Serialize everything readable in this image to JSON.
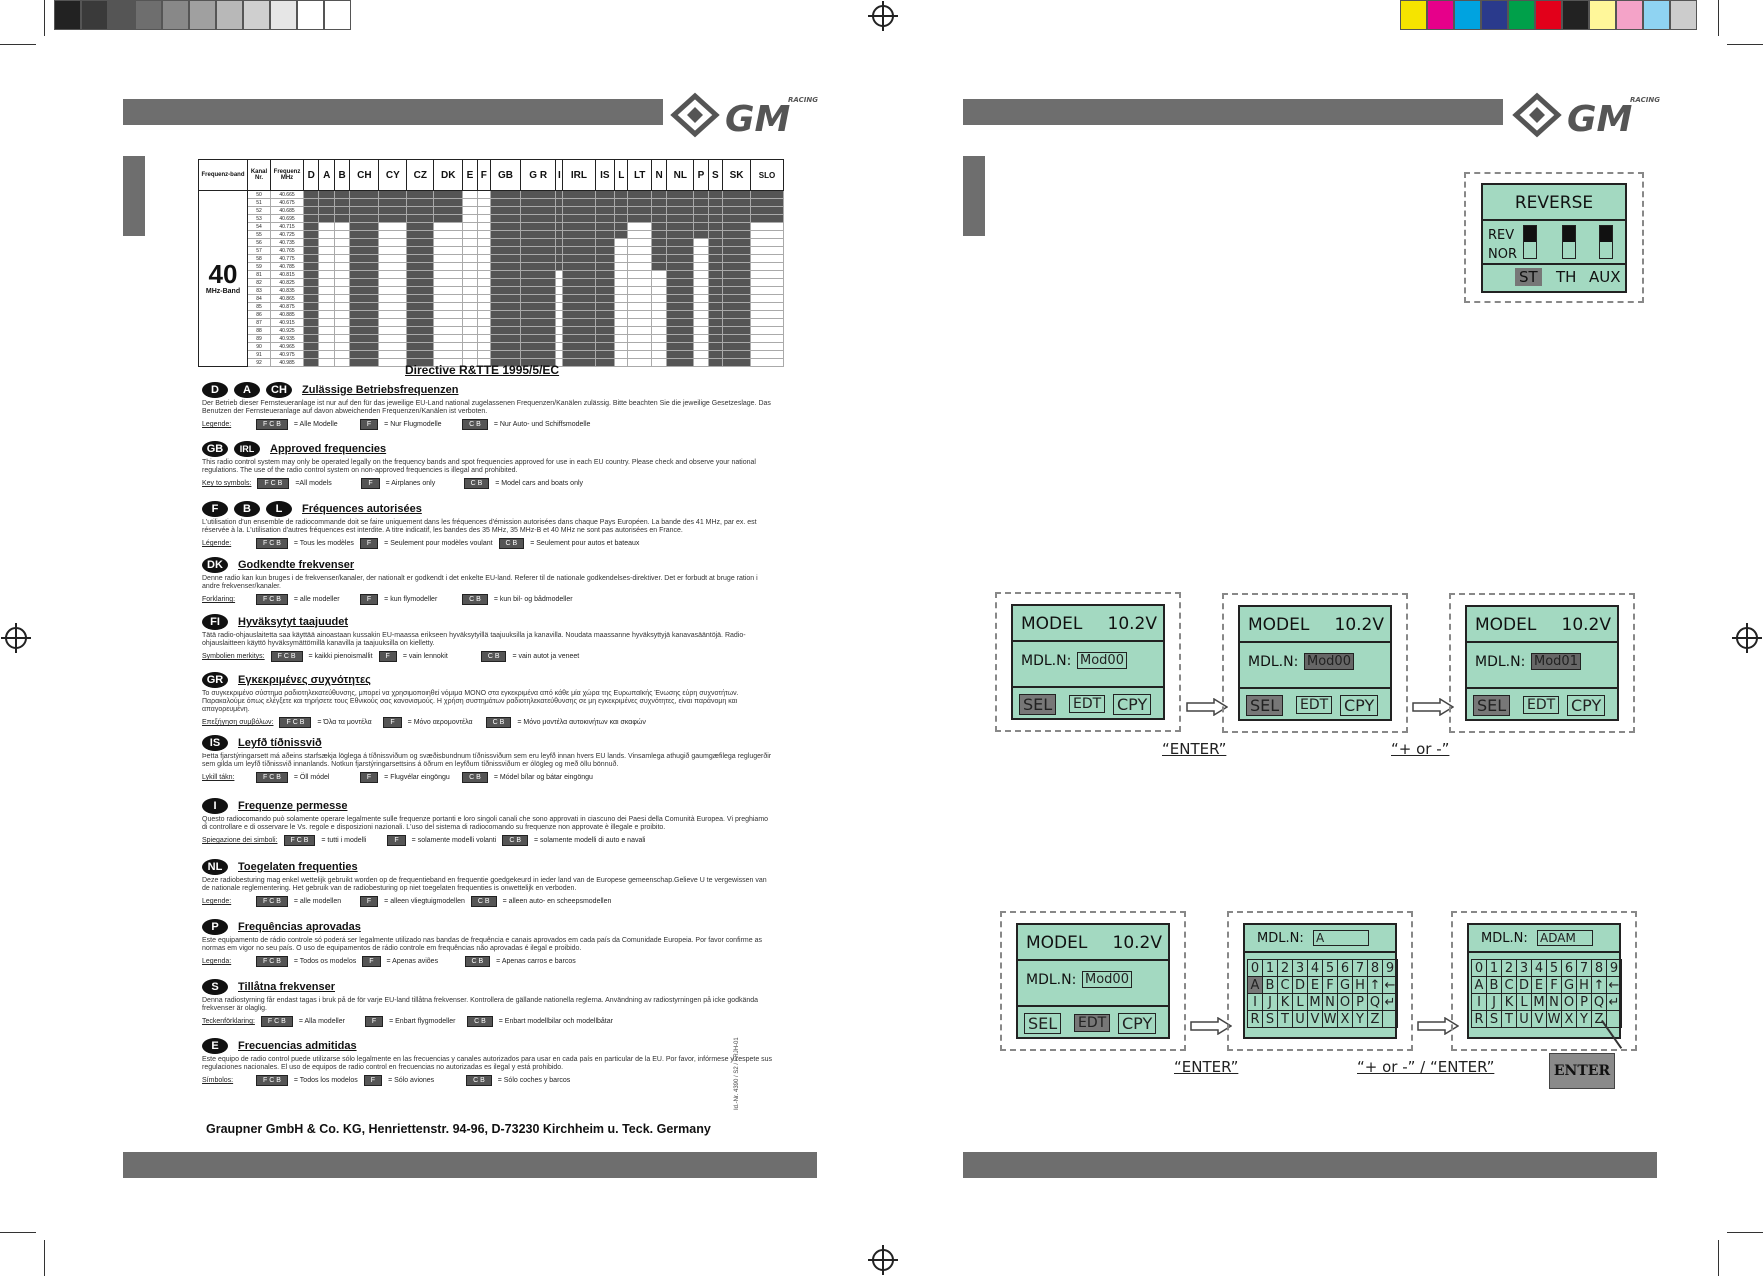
{
  "left_page": {
    "table": {
      "header_band": "Frequenz-band",
      "header_channel": "Kanal Nr.",
      "header_freq": "Frequenz MHz",
      "countries": [
        "D",
        "A",
        "B",
        "CH",
        "CY",
        "CZ",
        "DK",
        "E",
        "F",
        "GB",
        "G R",
        "I",
        "IRL",
        "IS",
        "L",
        "LT",
        "N",
        "NL",
        "P",
        "S",
        "SK",
        "SLO"
      ],
      "band_label": "40",
      "band_sub": "MHz-Band",
      "channels": [
        "50",
        "51",
        "52",
        "53",
        "54",
        "55",
        "56",
        "57",
        "58",
        "59",
        "81",
        "82",
        "83",
        "84",
        "85",
        "86",
        "87",
        "88",
        "89",
        "90",
        "91",
        "92"
      ],
      "freqs": [
        "40.665",
        "40.675",
        "40.685",
        "40.695",
        "40.715",
        "40.725",
        "40.735",
        "40.765",
        "40.775",
        "40.785",
        "40.815",
        "40.825",
        "40.835",
        "40.865",
        "40.875",
        "40.885",
        "40.915",
        "40.925",
        "40.935",
        "40.965",
        "40.975",
        "40.985"
      ]
    },
    "directive": "Directive R&TTE 1995/5/EC",
    "sections": [
      {
        "flags": [
          "D",
          "A",
          "CH"
        ],
        "title": "Zulässige Betriebsfrequenzen",
        "text": "Der Betrieb dieser Fernsteueranlage ist nur auf den für das jeweilige EU-Land national zugelassenen Frequenzen/Kanälen zulässig. Bitte beachten Sie die jeweilige Gesetzeslage. Das Benutzen der Fernsteueranlage auf davon abweichenden Frequenzen/Kanälen ist verboten.",
        "legend": "Legende:",
        "l1": "= Alle Modelle",
        "l2": "= Nur Flugmodelle",
        "l3": "= Nur Auto- und Schiffsmodelle"
      },
      {
        "flags": [
          "GB",
          "IRL"
        ],
        "title": "Approved frequencies",
        "text": "This radio control system may only be operated legally on the frequency bands and spot frequencies approved for use in each EU country. Please check and observe your national regulations. The use of the radio control system on non-approved frequencies is illegal and prohibited.",
        "legend": "Key to symbols:",
        "l1": "=All models",
        "l2": "= Airplanes only",
        "l3": "= Model cars and boats only"
      },
      {
        "flags": [
          "F",
          "B",
          "L"
        ],
        "title": "Fréquences autorisées",
        "text": "L'utilisation d'un ensemble de radiocommande doit se faire uniquement dans les fréquences d'émission autorisées dans chaque Pays Européen. La bande des 41 MHz, par ex. est réservée à la. L'utilisation d'autres fréquences est interdite. A titre indicatif, les bandes des 35 MHz, 35 MHz-B et 40 MHz ne sont pas autorisées en France.",
        "legend": "Légende:",
        "l1": "= Tous les modèles",
        "l2": "= Seulement pour modèles voulant",
        "l3": "= Seulement pour autos et bateaux"
      },
      {
        "flags": [
          "DK"
        ],
        "title": "Godkendte frekvenser",
        "text": "Denne radio kan kun bruges i de frekvenser/kanaler, der nationalt er godkendt i det enkelte EU-land. Referer til de nationale godkendelses-direktiver. Det er forbudt at bruge ration i andre frekvenser/kanaler.",
        "legend": "Forklaring:",
        "l1": "= alle modeller",
        "l2": "= kun flymodeller",
        "l3": "= kun bil- og bådmodeller"
      },
      {
        "flags": [
          "FI"
        ],
        "title": "Hyväksytyt taajuudet",
        "text": "Tätä radio-ohjauslaitetta saa käyttää ainoastaan kussakin EU-maassa erikseen hyväksytyillä taajuuksilla ja kanavilla. Noudata maassanne hyväksyttyjä kanavasääntöjä. Radio-ohjauslaitteen käyttö hyväksymättömillä kanavilla ja taajuuksilla on kielletty.",
        "legend": "Symbolien merkitys:",
        "l1": "= kaikki pienoismallit",
        "l2": "= vain lennokit",
        "l3": "= vain autot ja veneet"
      },
      {
        "flags": [
          "GR"
        ],
        "title": "Εγκεκριμένες συχνότητες",
        "text": "Το συγκεκριμένο σύστημα ραδιοτηλεκατεύθυνσης, μπορεί να χρησιμοποιηθεί νόμιμα ΜΟΝΟ στα εγκεκριμένα από κάθε μία χώρα της Ευρωπαϊκής Ένωσης εύρη συχνοτήτων. Παρακαλούμε όπως ελέγξετε και τηρήσετε τους Εθνικούς σας κανονισμούς. Η χρήση συστημάτων ραδιοτηλεκατεύθυνσης σε μη εγκεκριμένες συχνότητες, είναι παράνομη και απαγορευμένη.",
        "legend": "Επεξήγηση συμβόλων:",
        "l1": "= Όλα τα μοντέλα",
        "l2": "= Μόνο αερομοντέλα",
        "l3": "= Μόνο μοντέλα αυτοκινήτων και σκαφών"
      },
      {
        "flags": [
          "IS"
        ],
        "title": "Leyfð tíðnissvið",
        "text": "Þetta fjarstýringarsett má aðeins starfsækja löglega á tíðnissviðum og svæðisbundnum tíðnissviðum sem eru leyfð innan hvers EU lands. Vinsamlega athugið gaumgæfilega reglugerðir sem gilda um leyfð tíðnissvið innanlands. Notkun fjarstýringarsettsins á öðrum en leyfðum tíðnissviðum er ólögleg og með öllu bönnuð.",
        "legend": "Lykill tákn:",
        "l1": "= Öll módel",
        "l2": "= Flugvélar eingöngu",
        "l3": "= Módel bílar og bátar eingöngu"
      },
      {
        "flags": [
          "I"
        ],
        "title": "Frequenze permesse",
        "text": "Questo radiocomando può solamente operare legalmente sulle frequenze portanti e loro singoli canali che sono approvati in ciascuno dei Paesi della Comunità Europea. Vi preghiamo di controllare e di osservare le Vs. regole e disposizioni nazionali. L'uso del sistema di radiocomando su frequenze non approvate è illegale e proibito.",
        "legend": "Spiegazione dei simboli:",
        "l1": "= tutti i modelli",
        "l2": "= solamente modelli volanti",
        "l3": "= solamente modelli di auto e navali"
      },
      {
        "flags": [
          "NL"
        ],
        "title": "Toegelaten frequenties",
        "text": "Deze radiobesturing mag enkel wettelijk gebruikt worden op de frequentieband en frequentie goedgekeurd in ieder land van de Europese gemeenschap.Gelieve U te vergewissen van de nationale reglementering. Het gebruik van de radiobesturing op niet toegelaten frequenties is onwettelijk en verboden.",
        "legend": "Legende:",
        "l1": "= alle modellen",
        "l2": "= alleen vliegtuigmodellen",
        "l3": "= alleen auto- en scheepsmodellen"
      },
      {
        "flags": [
          "P"
        ],
        "title": "Frequências aprovadas",
        "text": "Este equipamento de rádio controle só poderá ser legalmente utilizado nas bandas de frequência e canais aprovados em cada país da Comunidade Europeia. Por favor confirme as normas em vigor no seu país. O uso de equipamentos de rádio controle em frequências não aprovadas é ilegal e proibido.",
        "legend": "Legenda:",
        "l1": "= Todos os modelos",
        "l2": "= Apenas aviões",
        "l3": "= Apenas carros e barcos"
      },
      {
        "flags": [
          "S"
        ],
        "title": "Tillåtna frekvenser",
        "text": "Denna radiostyrning får endast tagas i bruk på de för varje EU-land tillåtna frekvenser. Kontrollera de gällande nationella reglerna. Användning av radiostyrningen på icke godkända frekvenser är olaglig.",
        "legend": "Teckenförklaring:",
        "l1": "= Alla modeller",
        "l2": "= Enbart flygmodeller",
        "l3": "= Enbart modellbilar och modellbåtar"
      },
      {
        "flags": [
          "E"
        ],
        "title": "Frecuencias admitidas",
        "text": "Este equipo de radio control puede utilizarse sólo legalmente en las frecuencias y canales autorizados para usar en cada país en particular de la EU. Por favor, infórmese y respete sus regulaciones nacionales. El uso de equipos de radio control en frecuencias no autorizadas es ilegal y está prohibido.",
        "legend": "Símbolos:",
        "l1": "= Todos los modelos",
        "l2": "= Sólo aviones",
        "l3": "= Sólo coches y barcos"
      }
    ],
    "chip_fcb": "F C B",
    "chip_f": "F",
    "chip_cb": "C B",
    "footer": "Graupner GmbH & Co. KG, Henriettenstr. 94-96, D-73230 Kirchheim u. Teck. Germany",
    "side_code": "Id.-Nr. 4390 / S2 / FRJH-01"
  },
  "right_page": {
    "reverse": {
      "title": "REVERSE",
      "rev": "REV",
      "nor": "NOR",
      "ch1": "ST",
      "ch2": "TH",
      "ch3": "AUX"
    },
    "model_screens": [
      {
        "title": "MODEL",
        "volt": "10.2V",
        "label": "MDL.N:",
        "value": "Mod00",
        "sel": "SEL",
        "edt": "EDT",
        "cpy": "CPY"
      },
      {
        "title": "MODEL",
        "volt": "10.2V",
        "label": "MDL.N:",
        "value": "Mod00",
        "sel": "SEL",
        "edt": "EDT",
        "cpy": "CPY"
      },
      {
        "title": "MODEL",
        "volt": "10.2V",
        "label": "MDL.N:",
        "value": "Mod01",
        "sel": "SEL",
        "edt": "EDT",
        "cpy": "CPY"
      },
      {
        "title": "MODEL",
        "volt": "10.2V",
        "label": "MDL.N:",
        "value": "Mod00",
        "sel": "SEL",
        "edt": "EDT",
        "cpy": "CPY"
      }
    ],
    "kbd1_value": "A",
    "kbd2_value": "ADAM",
    "kbd_label": "MDL.N:",
    "keys_row1": [
      "0",
      "1",
      "2",
      "3",
      "4",
      "5",
      "6",
      "7",
      "8",
      "9"
    ],
    "keys_row2": [
      "A",
      "B",
      "C",
      "D",
      "E",
      "F",
      "G",
      "H",
      "↑",
      "←"
    ],
    "keys_row3": [
      "I",
      "J",
      "K",
      "L",
      "M",
      "N",
      "O",
      "P",
      "Q",
      "↵"
    ],
    "keys_row4": [
      "R",
      "S",
      "T",
      "U",
      "V",
      "W",
      "X",
      "Y",
      "Z",
      ""
    ],
    "cap_enter": "“ENTER”",
    "cap_plusminus": "“+ or -”",
    "cap_plusminus_enter": "“+ or -” / “ENTER”",
    "enter_key": "ENTER"
  },
  "colors": {
    "lcd": "#a3d9c1",
    "bar": "#6e6e6e"
  }
}
